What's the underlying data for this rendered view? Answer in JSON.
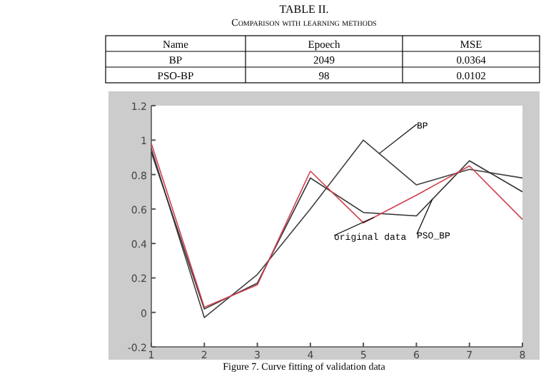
{
  "chart_data": [
    {
      "type": "other",
      "title": "TABLE II.",
      "subtitle": "Comparison with learning methods",
      "annotations": [
        "Name",
        "Epoech",
        "MSE",
        "BP",
        "2049",
        "0.0364",
        "PSO-BP",
        "98",
        "0.0102"
      ]
    },
    {
      "type": "line",
      "x": [
        1,
        2,
        3,
        4,
        5,
        6,
        7,
        8
      ],
      "xlim": [
        1,
        8
      ],
      "xticks": [
        1,
        2,
        3,
        4,
        5,
        6,
        7,
        8
      ],
      "ylim": [
        -0.2,
        1.2
      ],
      "yticks": [
        -0.2,
        0,
        0.2,
        0.4,
        0.6,
        0.8,
        1,
        1.2
      ],
      "grid": false,
      "marker": "none",
      "line_style": "solid",
      "series": [
        {
          "name": "BP",
          "color": "#404040",
          "values": [
            0.95,
            -0.03,
            0.22,
            0.6,
            1.0,
            0.74,
            0.83,
            0.78
          ]
        },
        {
          "name": "PSO_BP",
          "color": "#303030",
          "values": [
            0.93,
            0.02,
            0.17,
            0.78,
            0.58,
            0.56,
            0.88,
            0.7
          ]
        },
        {
          "name": "original data",
          "color": "#d04050",
          "values": [
            0.98,
            0.03,
            0.16,
            0.82,
            0.52,
            0.68,
            0.85,
            0.54
          ]
        }
      ],
      "annotations": [
        "Figure 7.  Curve fitting of validation data"
      ]
    }
  ]
}
